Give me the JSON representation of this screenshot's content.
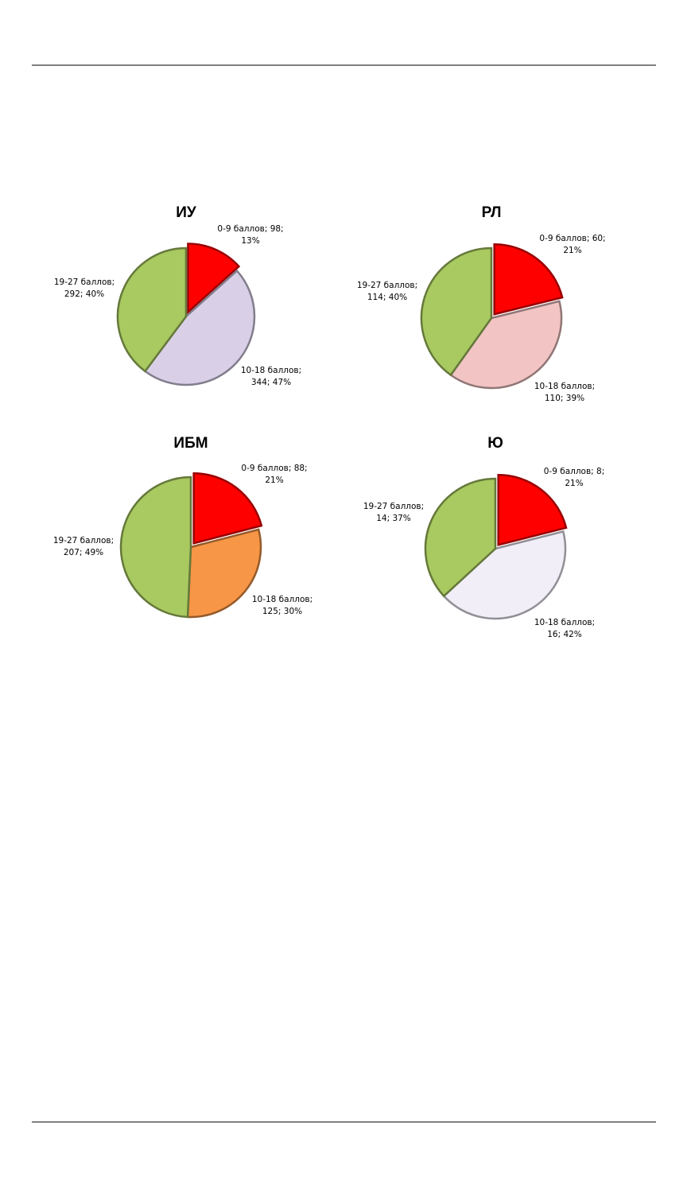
{
  "chart_data": [
    {
      "type": "pie",
      "title": "ИУ",
      "categories": [
        "0-9 баллов",
        "10-18 баллов",
        "19-27 баллов"
      ],
      "values": [
        98,
        344,
        292
      ],
      "value_labels": [
        "0-9 баллов; 98; 13%",
        "10-18 баллов; 344; 47%",
        "19-27 баллов; 292; 40%"
      ],
      "colors": [
        "#ff0000",
        "#d9d0e8",
        "#a9c961"
      ]
    },
    {
      "type": "pie",
      "title": "РЛ",
      "categories": [
        "0-9 баллов",
        "10-18 баллов",
        "19-27 баллов"
      ],
      "values": [
        60,
        110,
        114
      ],
      "value_labels": [
        "0-9 баллов; 60; 21%",
        "10-18 баллов; 110; 39%",
        "19-27 баллов; 114; 40%"
      ],
      "colors": [
        "#ff0000",
        "#f2c4c4",
        "#a9c961"
      ]
    },
    {
      "type": "pie",
      "title": "ИБМ",
      "categories": [
        "0-9 баллов",
        "10-18 баллов",
        "19-27 баллов"
      ],
      "values": [
        88,
        125,
        207
      ],
      "value_labels": [
        "0-9 баллов; 88; 21%",
        "10-18 баллов; 125; 30%",
        "19-27 баллов; 207; 49%"
      ],
      "colors": [
        "#ff0000",
        "#f79646",
        "#a9c961"
      ]
    },
    {
      "type": "pie",
      "title": "Ю",
      "categories": [
        "0-9 баллов",
        "10-18 баллов",
        "19-27 баллов"
      ],
      "values": [
        8,
        16,
        14
      ],
      "value_labels": [
        "0-9 баллов; 8; 21%",
        "10-18 баллов; 16; 42%",
        "19-27 баллов; 14; 37%"
      ],
      "colors": [
        "#ff0000",
        "#f2eef8",
        "#a9c961"
      ]
    }
  ]
}
